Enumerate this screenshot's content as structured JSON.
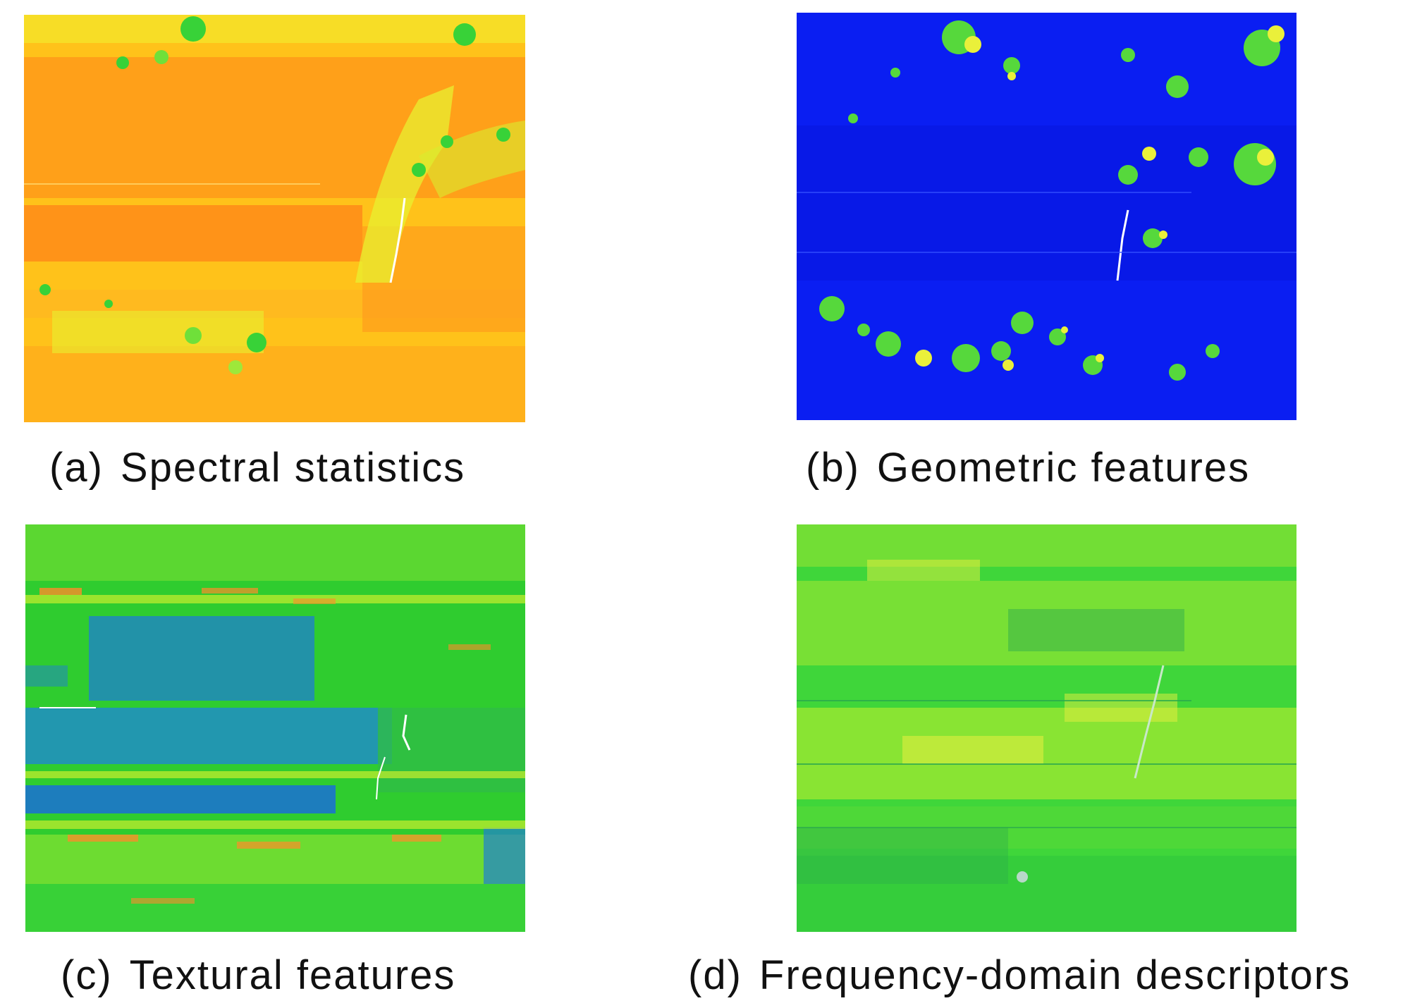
{
  "panels": [
    {
      "id": "a",
      "tag": "(a)",
      "label": "Spectral statistics",
      "colormap": "warm",
      "colors": {
        "base": "#ff9a1a",
        "mid": "#ffc21a",
        "light": "#e8f030",
        "accent": "#38d238"
      }
    },
    {
      "id": "b",
      "tag": "(b)",
      "label": "Geometric features",
      "colormap": "blue",
      "colors": {
        "base": "#0a1ef2",
        "mid": "#1c3cf0",
        "light": "#56d83c",
        "accent": "#eaf03a"
      }
    },
    {
      "id": "c",
      "tag": "(c)",
      "label": "Textural features",
      "colormap": "green-blue",
      "colors": {
        "base": "#2fcc2f",
        "mid": "#1f7fd2",
        "light": "#c9ee2c",
        "accent": "#ff8b2a"
      }
    },
    {
      "id": "d",
      "tag": "(d)",
      "label": "Frequency-domain descriptors",
      "colormap": "green",
      "colors": {
        "base": "#3fd63a",
        "mid": "#2aa84e",
        "light": "#c6f02e",
        "accent": "#e8ee40"
      }
    }
  ]
}
